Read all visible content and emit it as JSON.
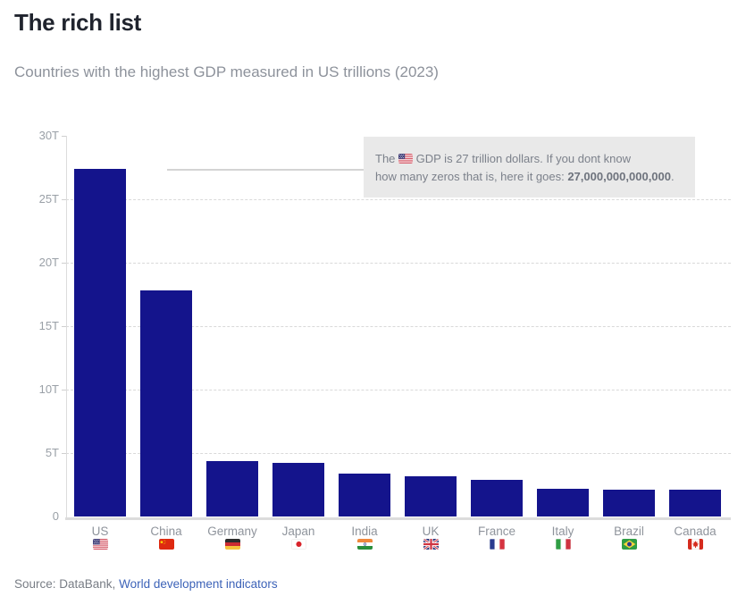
{
  "header": {
    "title": "The rich list",
    "subtitle": "Countries with the highest GDP measured in US trillions (2023)"
  },
  "annotation": {
    "line1_before_flag": "The ",
    "line1_after_flag": " GDP is 27 trillion dollars. If you dont know",
    "line2_prefix": "how many zeros that is, here it goes: ",
    "line2_bold": "27,000,000,000,000",
    "line2_suffix": "."
  },
  "chart_data": {
    "type": "bar",
    "title": "The rich list",
    "subtitle": "Countries with the highest GDP measured in US trillions (2023)",
    "categories": [
      "US",
      "China",
      "Germany",
      "Japan",
      "India",
      "UK",
      "France",
      "Italy",
      "Brazil",
      "Canada"
    ],
    "flags": [
      "us",
      "cn",
      "de",
      "jp",
      "in",
      "gb",
      "fr",
      "it",
      "br",
      "ca"
    ],
    "values": [
      27.4,
      17.8,
      4.4,
      4.2,
      3.4,
      3.2,
      2.9,
      2.2,
      2.1,
      2.1
    ],
    "unit": "trillion USD",
    "bar_color": "#14148C",
    "ylim": [
      0,
      30
    ],
    "yticks": [
      0,
      5,
      10,
      15,
      20,
      25,
      30
    ],
    "ytick_labels": [
      "0",
      "5T",
      "10T",
      "15T",
      "20T",
      "25T",
      "30T"
    ],
    "grid": "horizontal-dashed",
    "legend": "none",
    "annotation_text": "The [US flag] GDP is 27 trillion dollars. If you dont know how many zeros that is, here it goes: 27,000,000,000,000."
  },
  "source": {
    "prefix": "Source: DataBank, ",
    "link": "World development indicators"
  }
}
